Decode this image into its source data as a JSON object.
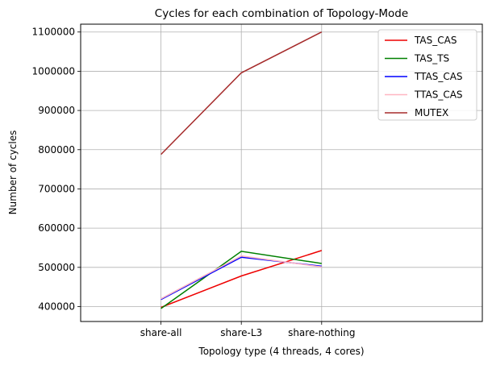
{
  "chart_data": {
    "type": "line",
    "title": "Cycles for each combination of Topology-Mode",
    "xlabel": "Topology type (4 threads, 4 cores)",
    "ylabel": "Number of cycles",
    "categories": [
      "share-all",
      "share-L3",
      "share-nothing"
    ],
    "xlim": [
      -1,
      4
    ],
    "ylim": [
      362000,
      1120000
    ],
    "yticks": [
      400000,
      500000,
      600000,
      700000,
      800000,
      900000,
      1000000,
      1100000
    ],
    "grid": true,
    "legend_position": "top-right",
    "series": [
      {
        "name": "TAS_CAS",
        "color": "#ee0000",
        "values": [
          398000,
          478000,
          543000
        ]
      },
      {
        "name": "TAS_TS",
        "color": "#008000",
        "values": [
          395000,
          541000,
          510000
        ]
      },
      {
        "name": "TTAS_CAS",
        "color": "#0000ff",
        "values": [
          418000,
          526000,
          503000
        ]
      },
      {
        "name": "TTAS_CAS",
        "color": "#ffb6c1",
        "values": [
          420000,
          529000,
          501000
        ]
      },
      {
        "name": "MUTEX",
        "color": "#a52a2a",
        "values": [
          788000,
          996000,
          1100000
        ]
      }
    ]
  }
}
